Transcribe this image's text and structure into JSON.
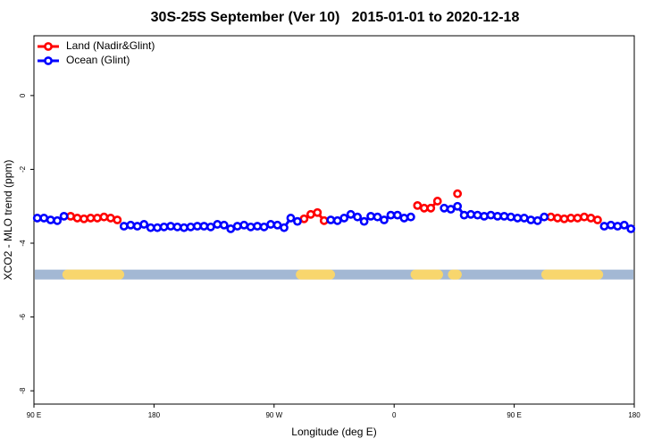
{
  "chart_data": {
    "type": "line",
    "title": "30S-25S September (Ver 10)   2015-01-01 to 2020-12-18",
    "x_label": "Longitude (deg E)",
    "y_label": "XCO2 - MLO trend (ppm)",
    "x": [
      92.5,
      97.5,
      102.5,
      107.5,
      112.5,
      117.5,
      122.5,
      127.5,
      132.5,
      137.5,
      142.5,
      147.5,
      152.5,
      157.5,
      162.5,
      167.5,
      172.5,
      177.5,
      182.5,
      187.5,
      192.5,
      197.5,
      202.5,
      207.5,
      212.5,
      217.5,
      222.5,
      227.5,
      232.5,
      237.5,
      242.5,
      247.5,
      252.5,
      257.5,
      262.5,
      267.5,
      272.5,
      277.5,
      282.5,
      287.5,
      292.5,
      297.5,
      302.5,
      307.5,
      312.5,
      317.5,
      322.5,
      327.5,
      332.5,
      337.5,
      342.5,
      347.5,
      352.5,
      357.5,
      362.5,
      367.5,
      372.5,
      377.5,
      382.5,
      387.5,
      392.5,
      397.5,
      402.5,
      407.5,
      412.5,
      417.5,
      422.5,
      427.5,
      432.5,
      437.5,
      442.5,
      447.5,
      452.5,
      457.5,
      462.5,
      467.5,
      472.5,
      477.5,
      482.5,
      487.5,
      492.5,
      497.5,
      502.5,
      507.5,
      512.5,
      517.5,
      522.5,
      527.5,
      532.5,
      537.5
    ],
    "series": [
      {
        "name": "Land (Nadir&Glint)",
        "color": "#ff0000",
        "values": [
          null,
          null,
          null,
          null,
          null,
          -3.27,
          -3.32,
          -3.34,
          -3.32,
          -3.32,
          -3.29,
          -3.32,
          -3.37,
          null,
          null,
          null,
          null,
          null,
          null,
          null,
          null,
          null,
          null,
          null,
          null,
          null,
          null,
          null,
          null,
          null,
          null,
          null,
          null,
          null,
          null,
          null,
          null,
          null,
          null,
          null,
          -3.34,
          -3.22,
          -3.17,
          -3.39,
          null,
          null,
          null,
          null,
          null,
          null,
          null,
          null,
          null,
          null,
          null,
          null,
          null,
          -2.98,
          -3.05,
          -3.05,
          -2.86,
          null,
          null,
          -2.66,
          null,
          null,
          null,
          null,
          null,
          null,
          null,
          null,
          null,
          null,
          null,
          null,
          null,
          -3.29,
          -3.32,
          -3.34,
          -3.32,
          -3.32,
          -3.29,
          -3.32,
          -3.37,
          null,
          null,
          null,
          null,
          null
        ]
      },
      {
        "name": "Ocean (Glint)",
        "color": "#0000ff",
        "values": [
          -3.32,
          -3.32,
          -3.37,
          -3.39,
          -3.27,
          null,
          null,
          null,
          null,
          null,
          null,
          null,
          null,
          -3.54,
          -3.51,
          -3.54,
          -3.49,
          -3.58,
          -3.58,
          -3.56,
          -3.54,
          -3.56,
          -3.58,
          -3.56,
          -3.54,
          -3.54,
          -3.56,
          -3.49,
          -3.51,
          -3.61,
          -3.54,
          -3.51,
          -3.56,
          -3.54,
          -3.56,
          -3.49,
          -3.51,
          -3.58,
          -3.32,
          -3.41,
          null,
          null,
          null,
          null,
          -3.37,
          -3.39,
          -3.32,
          -3.22,
          -3.29,
          -3.41,
          -3.27,
          -3.29,
          -3.37,
          -3.24,
          -3.24,
          -3.32,
          -3.29,
          null,
          null,
          null,
          null,
          -3.05,
          -3.08,
          -3.0,
          -3.24,
          -3.22,
          -3.24,
          -3.27,
          -3.24,
          -3.27,
          -3.27,
          -3.29,
          -3.32,
          -3.32,
          -3.37,
          -3.39,
          -3.29,
          null,
          null,
          null,
          null,
          null,
          null,
          null,
          null,
          -3.54,
          -3.51,
          -3.54,
          -3.51,
          -3.61
        ]
      }
    ],
    "band": {
      "y": -4.85,
      "ocean_color": "#a3b8d4",
      "land_color": "#f8d66d",
      "land_spans": [
        [
          115,
          154
        ],
        [
          290,
          312
        ],
        [
          376,
          393
        ],
        [
          404,
          407
        ],
        [
          474,
          513
        ]
      ]
    },
    "xlim": [
      90,
      540
    ],
    "xticks": [
      {
        "value": 90,
        "label": "90 E"
      },
      {
        "value": 180,
        "label": "180"
      },
      {
        "value": 270,
        "label": "90 W"
      },
      {
        "value": 360,
        "label": "0"
      },
      {
        "value": 450,
        "label": "90 E"
      },
      {
        "value": 540,
        "label": "180"
      }
    ],
    "ylim": [
      -8.36,
      1.62
    ],
    "yticks": [
      0,
      -2,
      -4,
      -6,
      -8
    ],
    "legend": "top-left"
  }
}
